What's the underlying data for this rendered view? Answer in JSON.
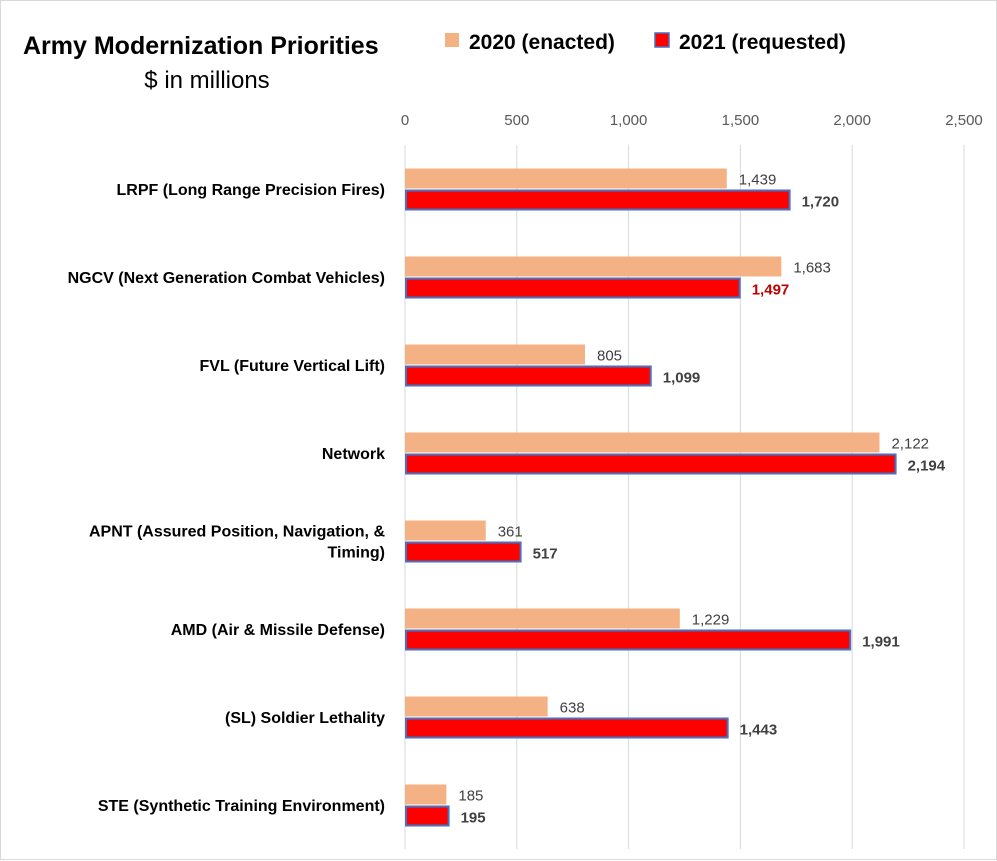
{
  "chart_data": {
    "type": "bar",
    "orientation": "horizontal",
    "title": "Army Modernization Priorities",
    "subtitle": "$ in millions",
    "categories": [
      "LRPF (Long Range Precision Fires)",
      "NGCV (Next Generation Combat Vehicles)",
      "FVL (Future Vertical Lift)",
      "Network",
      "APNT (Assured Position, Navigation, & Timing)",
      "AMD (Air & Missile Defense)",
      "(SL) Soldier Lethality",
      "STE (Synthetic Training Environment)"
    ],
    "category_lines": [
      [
        "LRPF (Long Range Precision Fires)"
      ],
      [
        "NGCV (Next Generation Combat Vehicles)"
      ],
      [
        "FVL (Future Vertical Lift)"
      ],
      [
        "Network"
      ],
      [
        "APNT (Assured Position, Navigation, &",
        "Timing)"
      ],
      [
        "AMD (Air & Missile Defense)"
      ],
      [
        "(SL) Soldier Lethality"
      ],
      [
        "STE (Synthetic Training Environment)"
      ]
    ],
    "series": [
      {
        "name": "2020 (enacted)",
        "color": "#f4b183",
        "values": [
          1439,
          1683,
          805,
          2122,
          361,
          1229,
          638,
          185
        ],
        "labels": [
          "1,439",
          "1,683",
          "805",
          "2,122",
          "361",
          "1,229",
          "638",
          "185"
        ]
      },
      {
        "name": "2021 (requested)",
        "color": "#ff0000",
        "border_color": "#4472c4",
        "values": [
          1720,
          1497,
          1099,
          2194,
          517,
          1991,
          1443,
          195
        ],
        "labels": [
          "1,720",
          "1,497",
          "1,099",
          "2,194",
          "517",
          "1,991",
          "1,443",
          "195"
        ],
        "label_colors": [
          "#404040",
          "#c00000",
          "#404040",
          "#404040",
          "#404040",
          "#404040",
          "#404040",
          "#404040"
        ]
      }
    ],
    "xlim": [
      0,
      2500
    ],
    "x_ticks": [
      0,
      500,
      1000,
      1500,
      2000,
      2500
    ],
    "x_tick_labels": [
      "0",
      "500",
      "1,000",
      "1,500",
      "2,000",
      "2,500"
    ],
    "x_axis_position": "top",
    "grid": true,
    "grid_color": "#d9d9d9",
    "legend_position": "top-right"
  }
}
